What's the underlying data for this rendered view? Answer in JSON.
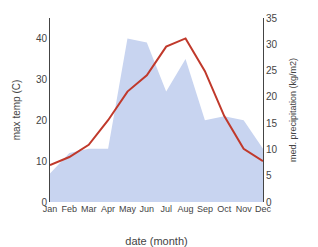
{
  "chart_data": {
    "type": "line",
    "categories": [
      "Jan",
      "Feb",
      "Mar",
      "Apr",
      "May",
      "Jun",
      "Jul",
      "Aug",
      "Sep",
      "Oct",
      "Nov",
      "Dec"
    ],
    "series": [
      {
        "type": "area",
        "color": "#c8d4f0",
        "values": [
          7,
          12,
          13,
          13,
          40,
          39,
          27,
          35,
          20,
          21,
          20,
          13
        ]
      },
      {
        "type": "line",
        "color": "#c0392b",
        "values": [
          9,
          11,
          14,
          20,
          27,
          31,
          38,
          40,
          32,
          21,
          13,
          10
        ]
      }
    ],
    "xlabel": "date (month)",
    "ylabel": "max temp (C)",
    "y2label": "med. precipitation (kg/m2)",
    "ylim": [
      0,
      45
    ],
    "yticks": [
      0,
      10,
      20,
      30,
      40
    ],
    "y2lim": [
      0,
      35
    ],
    "y2ticks": [
      0,
      5,
      10,
      15,
      20,
      25,
      30,
      35
    ],
    "grid": false
  }
}
